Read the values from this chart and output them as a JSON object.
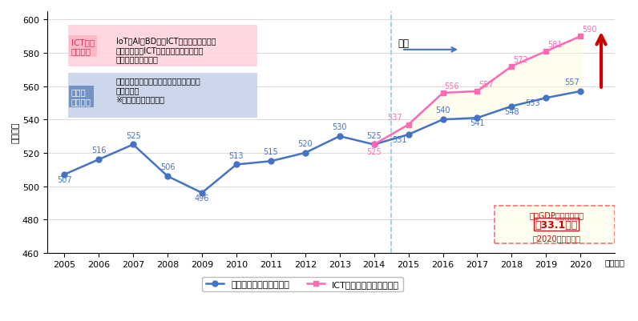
{
  "ylabel": "（兆円）",
  "xlabel_suffix": "（年度）",
  "ylim": [
    460,
    605
  ],
  "yticks": [
    460,
    480,
    500,
    520,
    540,
    560,
    580,
    600
  ],
  "base_years": [
    2005,
    2006,
    2007,
    2008,
    2009,
    2010,
    2011,
    2012,
    2013,
    2014,
    2015,
    2016,
    2017,
    2018,
    2019,
    2020
  ],
  "base_values": [
    507,
    516,
    525,
    506,
    496,
    513,
    515,
    520,
    530,
    525,
    531,
    540,
    541,
    548,
    553,
    557
  ],
  "ict_years": [
    2014,
    2015,
    2016,
    2017,
    2018,
    2019,
    2020
  ],
  "ict_values": [
    525,
    537,
    556,
    557,
    572,
    581,
    590
  ],
  "base_color": "#4472C4",
  "ict_color": "#FF69B4",
  "vline_x": 2014.5,
  "vline_color": "#87CEEB",
  "forecast_label": "予測",
  "forecast_arrow_color": "#4472C4",
  "ict_box_color": "#FFB6C1",
  "ict_box_text_color": "#CC3366",
  "base_box_color": "#6B8CBF",
  "annotation_box_color": "#FFFF99",
  "annotation_box_border": "#FF6666",
  "annotation_text": "実質GDP押し上げ効果",
  "annotation_value": "約33.1兆円",
  "annotation_sub": "（2020年度時点）",
  "ict_scenario_label": "ICT成長\nシナリオ",
  "ict_scenario_desc": "IoT・AI・BD等のICTの進展を見据え、\n企業におけるICT投資や生産性向上に係\nる取り組みが活性化",
  "base_scenario_label": "ベース\nシナリオ",
  "base_scenario_desc": "経済が足元の潜在成長率並みで将来にわ\nたって推移\n※内閣府試算に基づく",
  "legend_base": "ベースシナリオ（実質）",
  "legend_ict": "ICT成長シナリオ（実質）",
  "red_arrow_color": "#CC0000",
  "fill_color": "#FFFACD"
}
